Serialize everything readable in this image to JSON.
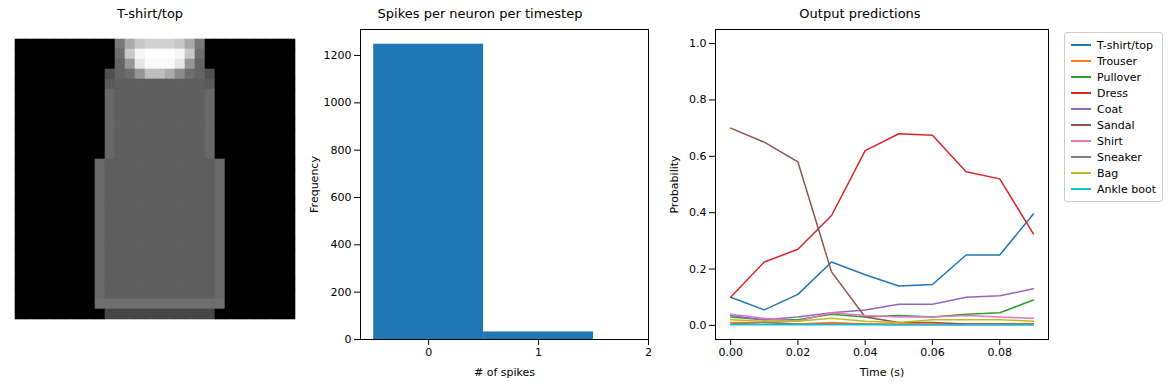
{
  "chart_data": [
    {
      "type": "image",
      "title": "T-shirt/top",
      "tick_labels": false,
      "clim": [
        0,
        255
      ],
      "cells": [
        [
          0,
          0,
          0,
          0,
          0,
          0,
          0,
          0,
          0,
          0,
          120,
          170,
          200,
          210,
          210,
          210,
          200,
          170,
          120,
          0,
          0,
          0,
          0,
          0,
          0,
          0,
          0,
          0
        ],
        [
          0,
          0,
          0,
          0,
          0,
          0,
          0,
          0,
          0,
          0,
          110,
          200,
          245,
          255,
          255,
          255,
          245,
          200,
          110,
          0,
          0,
          0,
          0,
          0,
          0,
          0,
          0,
          0
        ],
        [
          0,
          0,
          0,
          0,
          0,
          0,
          0,
          0,
          0,
          0,
          100,
          150,
          230,
          250,
          250,
          250,
          230,
          150,
          100,
          0,
          0,
          0,
          0,
          0,
          0,
          0,
          0,
          0
        ],
        [
          0,
          0,
          0,
          0,
          0,
          0,
          0,
          0,
          0,
          80,
          100,
          110,
          150,
          190,
          190,
          170,
          140,
          110,
          100,
          80,
          0,
          0,
          0,
          0,
          0,
          0,
          0,
          0
        ],
        [
          0,
          0,
          0,
          0,
          0,
          0,
          0,
          0,
          0,
          90,
          95,
          95,
          95,
          95,
          95,
          95,
          95,
          95,
          95,
          90,
          0,
          0,
          0,
          0,
          0,
          0,
          0,
          0
        ],
        [
          0,
          0,
          0,
          0,
          0,
          0,
          0,
          0,
          0,
          105,
          95,
          95,
          95,
          95,
          95,
          95,
          95,
          95,
          95,
          105,
          0,
          0,
          0,
          0,
          0,
          0,
          0,
          0
        ],
        [
          0,
          0,
          0,
          0,
          0,
          0,
          0,
          0,
          0,
          105,
          95,
          95,
          95,
          95,
          95,
          95,
          95,
          95,
          95,
          105,
          0,
          0,
          0,
          0,
          0,
          0,
          0,
          0
        ],
        [
          0,
          0,
          0,
          0,
          0,
          0,
          0,
          0,
          0,
          105,
          95,
          95,
          95,
          95,
          95,
          95,
          95,
          95,
          95,
          105,
          0,
          0,
          0,
          0,
          0,
          0,
          0,
          0
        ],
        [
          0,
          0,
          0,
          0,
          0,
          0,
          0,
          0,
          0,
          105,
          95,
          95,
          95,
          95,
          95,
          95,
          95,
          95,
          95,
          105,
          0,
          0,
          0,
          0,
          0,
          0,
          0,
          0
        ],
        [
          0,
          0,
          0,
          0,
          0,
          0,
          0,
          0,
          0,
          105,
          95,
          95,
          95,
          95,
          95,
          95,
          95,
          95,
          95,
          105,
          0,
          0,
          0,
          0,
          0,
          0,
          0,
          0
        ],
        [
          0,
          0,
          0,
          0,
          0,
          0,
          0,
          0,
          0,
          105,
          95,
          95,
          95,
          95,
          95,
          95,
          95,
          95,
          95,
          105,
          0,
          0,
          0,
          0,
          0,
          0,
          0,
          0
        ],
        [
          0,
          0,
          0,
          0,
          0,
          0,
          0,
          0,
          0,
          105,
          95,
          95,
          95,
          95,
          95,
          95,
          95,
          95,
          95,
          105,
          0,
          0,
          0,
          0,
          0,
          0,
          0,
          0
        ],
        [
          0,
          0,
          0,
          0,
          0,
          0,
          0,
          0,
          105,
          95,
          95,
          95,
          95,
          95,
          95,
          95,
          95,
          95,
          95,
          95,
          105,
          0,
          0,
          0,
          0,
          0,
          0,
          0
        ],
        [
          0,
          0,
          0,
          0,
          0,
          0,
          0,
          0,
          105,
          95,
          95,
          95,
          95,
          95,
          95,
          95,
          95,
          95,
          95,
          95,
          105,
          0,
          0,
          0,
          0,
          0,
          0,
          0
        ],
        [
          0,
          0,
          0,
          0,
          0,
          0,
          0,
          0,
          105,
          95,
          95,
          95,
          95,
          95,
          95,
          95,
          95,
          95,
          95,
          95,
          105,
          0,
          0,
          0,
          0,
          0,
          0,
          0
        ],
        [
          0,
          0,
          0,
          0,
          0,
          0,
          0,
          0,
          105,
          95,
          95,
          95,
          95,
          95,
          95,
          95,
          95,
          95,
          95,
          95,
          105,
          0,
          0,
          0,
          0,
          0,
          0,
          0
        ],
        [
          0,
          0,
          0,
          0,
          0,
          0,
          0,
          0,
          105,
          95,
          95,
          95,
          95,
          95,
          95,
          95,
          95,
          95,
          95,
          95,
          105,
          0,
          0,
          0,
          0,
          0,
          0,
          0
        ],
        [
          0,
          0,
          0,
          0,
          0,
          0,
          0,
          0,
          105,
          95,
          95,
          95,
          95,
          95,
          95,
          95,
          95,
          95,
          95,
          95,
          105,
          0,
          0,
          0,
          0,
          0,
          0,
          0
        ],
        [
          0,
          0,
          0,
          0,
          0,
          0,
          0,
          0,
          105,
          95,
          95,
          95,
          95,
          95,
          95,
          95,
          95,
          95,
          95,
          95,
          105,
          0,
          0,
          0,
          0,
          0,
          0,
          0
        ],
        [
          0,
          0,
          0,
          0,
          0,
          0,
          0,
          0,
          105,
          95,
          95,
          95,
          95,
          95,
          95,
          95,
          95,
          95,
          95,
          95,
          105,
          0,
          0,
          0,
          0,
          0,
          0,
          0
        ],
        [
          0,
          0,
          0,
          0,
          0,
          0,
          0,
          0,
          105,
          95,
          95,
          95,
          95,
          95,
          95,
          95,
          95,
          95,
          95,
          95,
          105,
          0,
          0,
          0,
          0,
          0,
          0,
          0
        ],
        [
          0,
          0,
          0,
          0,
          0,
          0,
          0,
          0,
          105,
          95,
          95,
          95,
          95,
          95,
          95,
          95,
          95,
          95,
          95,
          95,
          105,
          0,
          0,
          0,
          0,
          0,
          0,
          0
        ],
        [
          0,
          0,
          0,
          0,
          0,
          0,
          0,
          0,
          105,
          95,
          95,
          95,
          95,
          95,
          95,
          95,
          95,
          95,
          95,
          95,
          105,
          0,
          0,
          0,
          0,
          0,
          0,
          0
        ],
        [
          0,
          0,
          0,
          0,
          0,
          0,
          0,
          0,
          105,
          95,
          95,
          95,
          95,
          95,
          95,
          95,
          95,
          95,
          95,
          95,
          105,
          0,
          0,
          0,
          0,
          0,
          0,
          0
        ],
        [
          0,
          0,
          0,
          0,
          0,
          0,
          0,
          0,
          105,
          95,
          95,
          95,
          95,
          95,
          95,
          95,
          95,
          95,
          95,
          95,
          105,
          0,
          0,
          0,
          0,
          0,
          0,
          0
        ],
        [
          0,
          0,
          0,
          0,
          0,
          0,
          0,
          0,
          105,
          95,
          95,
          95,
          95,
          95,
          95,
          95,
          95,
          95,
          95,
          95,
          105,
          0,
          0,
          0,
          0,
          0,
          0,
          0
        ],
        [
          0,
          0,
          0,
          0,
          0,
          0,
          0,
          0,
          110,
          110,
          110,
          110,
          110,
          110,
          110,
          110,
          110,
          110,
          110,
          110,
          110,
          0,
          0,
          0,
          0,
          0,
          0,
          0
        ],
        [
          0,
          0,
          0,
          0,
          0,
          0,
          0,
          0,
          0,
          70,
          70,
          70,
          70,
          70,
          70,
          70,
          70,
          70,
          70,
          70,
          0,
          0,
          0,
          0,
          0,
          0,
          0,
          0
        ]
      ]
    },
    {
      "type": "histogram",
      "title": "Spikes per neuron per timestep",
      "x_label": "# of spikes",
      "y_label": "Frequency",
      "bins": [
        -0.5,
        0.5,
        1.5
      ],
      "values": [
        1248,
        32
      ],
      "color": "#1f77b4",
      "xlim": [
        -0.62,
        2.0
      ],
      "xticks": [
        0,
        1,
        2
      ],
      "ylim": [
        0,
        1310
      ],
      "yticks": [
        0,
        200,
        400,
        600,
        800,
        1000,
        1200
      ]
    },
    {
      "type": "line",
      "title": "Output predictions",
      "x_label": "Time (s)",
      "y_label": "Probability",
      "legend": "right",
      "x": [
        0,
        0.01,
        0.02,
        0.03,
        0.04,
        0.05,
        0.06,
        0.07,
        0.08,
        0.09
      ],
      "xlim": [
        -0.0045,
        0.0945
      ],
      "xticks": [
        {
          "value": 0,
          "label": "0.00"
        },
        {
          "value": 0.02,
          "label": "0.02"
        },
        {
          "value": 0.04,
          "label": "0.04"
        },
        {
          "value": 0.06,
          "label": "0.06"
        },
        {
          "value": 0.08,
          "label": "0.08"
        }
      ],
      "ylim": [
        -0.05,
        1.05
      ],
      "yticks": [
        {
          "value": 0,
          "label": "0.0"
        },
        {
          "value": 0.2,
          "label": "0.2"
        },
        {
          "value": 0.4,
          "label": "0.4"
        },
        {
          "value": 0.6,
          "label": "0.6"
        },
        {
          "value": 0.8,
          "label": "0.8"
        },
        {
          "value": 1,
          "label": "1.0"
        }
      ],
      "series": [
        {
          "name": "T-shirt/top",
          "color": "#1f77b4",
          "values": [
            0.1,
            0.055,
            0.11,
            0.225,
            0.18,
            0.14,
            0.145,
            0.25,
            0.25,
            0.395
          ]
        },
        {
          "name": "Trouser",
          "color": "#ff7f0e",
          "values": [
            0.01,
            0.01,
            0.005,
            0.01,
            0.005,
            0.005,
            0.005,
            0.005,
            0.005,
            0.005
          ]
        },
        {
          "name": "Pullover",
          "color": "#2ca02c",
          "values": [
            0.03,
            0.02,
            0.02,
            0.04,
            0.03,
            0.035,
            0.03,
            0.04,
            0.045,
            0.09
          ]
        },
        {
          "name": "Dress",
          "color": "#d62728",
          "values": [
            0.1,
            0.225,
            0.27,
            0.39,
            0.62,
            0.68,
            0.675,
            0.545,
            0.52,
            0.325
          ]
        },
        {
          "name": "Coat",
          "color": "#9467bd",
          "values": [
            0.035,
            0.02,
            0.03,
            0.045,
            0.055,
            0.075,
            0.075,
            0.1,
            0.105,
            0.13
          ]
        },
        {
          "name": "Sandal",
          "color": "#8c564b",
          "values": [
            0.7,
            0.65,
            0.58,
            0.19,
            0.03,
            0.01,
            0.01,
            0.005,
            0.005,
            0.005
          ]
        },
        {
          "name": "Shirt",
          "color": "#e377c2",
          "values": [
            0.04,
            0.025,
            0.015,
            0.045,
            0.035,
            0.03,
            0.03,
            0.035,
            0.03,
            0.025
          ]
        },
        {
          "name": "Sneaker",
          "color": "#7f7f7f",
          "values": [
            0.005,
            0.01,
            0.005,
            0.005,
            0.005,
            0.002,
            0.002,
            0.002,
            0.002,
            0.002
          ]
        },
        {
          "name": "Bag",
          "color": "#bcbd22",
          "values": [
            0.02,
            0.015,
            0.015,
            0.025,
            0.015,
            0.01,
            0.02,
            0.02,
            0.02,
            0.015
          ]
        },
        {
          "name": "Ankle boot",
          "color": "#17becf",
          "values": [
            0.002,
            0.002,
            0.002,
            0.002,
            0.002,
            0.002,
            0.002,
            0.002,
            0.002,
            0.002
          ]
        }
      ]
    }
  ]
}
